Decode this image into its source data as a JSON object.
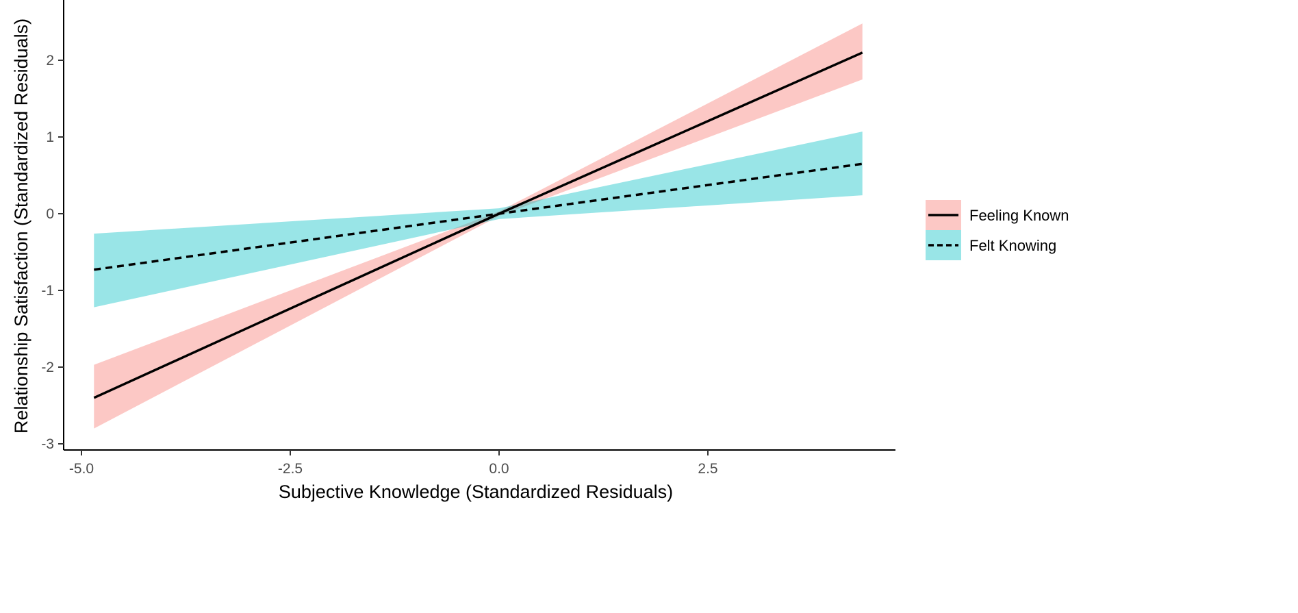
{
  "chart_data": {
    "type": "line",
    "title": "",
    "xlabel": "Subjective Knowledge (Standardized Residuals)",
    "ylabel": "Relationship Satisfaction (Standardized Residuals)",
    "xlim": [
      -5.0,
      4.6
    ],
    "ylim": [
      -3.1,
      2.75
    ],
    "x_ticks": [
      -5.0,
      -2.5,
      0.0,
      2.5
    ],
    "x_tick_labels": [
      "-5.0",
      "-2.5",
      "0.0",
      "2.5"
    ],
    "y_ticks": [
      -3,
      -2,
      -1,
      0,
      1,
      2
    ],
    "y_tick_labels": [
      "-3",
      "-2",
      "-1",
      "0",
      "1",
      "2"
    ],
    "grid": false,
    "legend_position": "right",
    "series": [
      {
        "name": "Feeling Known",
        "line_style": "solid",
        "fill_color": "#F8766D",
        "line_color": "#000000",
        "x": [
          -4.85,
          0.0,
          4.35
        ],
        "y": [
          -2.4,
          0.0,
          2.1
        ],
        "ci_lower": [
          -2.8,
          -0.03,
          1.75
        ],
        "ci_upper": [
          -1.97,
          0.03,
          2.48
        ]
      },
      {
        "name": "Felt Knowing",
        "line_style": "dashed",
        "fill_color": "#00BFC4",
        "line_color": "#000000",
        "x": [
          -4.85,
          0.0,
          4.35
        ],
        "y": [
          -0.73,
          0.0,
          0.65
        ],
        "ci_lower": [
          -1.22,
          -0.07,
          0.24
        ],
        "ci_upper": [
          -0.26,
          0.07,
          1.07
        ]
      }
    ]
  }
}
